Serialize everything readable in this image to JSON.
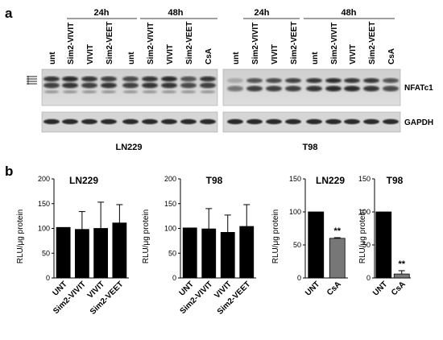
{
  "panel_a": {
    "label": "a",
    "groups": [
      {
        "time": "24h",
        "lanes": [
          "unt",
          "Sim2-VIVIT",
          "VIVIT",
          "Sim2-VEET"
        ]
      },
      {
        "time": "48h",
        "lanes": [
          "unt",
          "Sim2-VIVIT",
          "VIVIT",
          "Sim2-VEET",
          "CsA"
        ]
      }
    ],
    "blots": [
      {
        "cell_line": "LN229"
      },
      {
        "cell_line": "T98"
      }
    ],
    "protein_nfat": "NFATc1",
    "protein_gapdh": "GAPDH"
  },
  "panel_b": {
    "label": "b",
    "significance": "**"
  },
  "chart_data": [
    {
      "type": "bar",
      "title": "LN229",
      "ylabel": "RLU/μg protein",
      "categories": [
        "UNT",
        "Sim2-VIVIT",
        "VIVIT",
        "Sim2-VEET"
      ],
      "values": [
        102,
        98,
        100,
        111
      ],
      "errors": [
        0,
        36,
        53,
        37
      ],
      "ylim": [
        0,
        200
      ],
      "yticks": [
        0,
        50,
        100,
        150,
        200
      ],
      "bar_color": "#000000"
    },
    {
      "type": "bar",
      "title": "T98",
      "ylabel": "RLU/μg protein",
      "categories": [
        "UNT",
        "Sim2-VIVIT",
        "VIVIT",
        "Sim2-VEET"
      ],
      "values": [
        101,
        99,
        92,
        104
      ],
      "errors": [
        0,
        41,
        35,
        44
      ],
      "ylim": [
        0,
        200
      ],
      "yticks": [
        0,
        50,
        100,
        150,
        200
      ],
      "bar_color": "#000000"
    },
    {
      "type": "bar",
      "title": "LN229",
      "ylabel": "RLU/μg protein",
      "categories": [
        "UNT",
        "CsA"
      ],
      "values": [
        100,
        60
      ],
      "errors": [
        0,
        1
      ],
      "ylim": [
        0,
        150
      ],
      "yticks": [
        0,
        50,
        100,
        150
      ],
      "bar_colors": [
        "#000000",
        "#777777"
      ],
      "annotation": "**"
    },
    {
      "type": "bar",
      "title": "T98",
      "ylabel": "RLU/μg protein",
      "categories": [
        "UNT",
        "CsA"
      ],
      "values": [
        100,
        6
      ],
      "errors": [
        0,
        5
      ],
      "ylim": [
        0,
        150
      ],
      "yticks": [
        0,
        50,
        100,
        150
      ],
      "bar_colors": [
        "#000000",
        "#777777"
      ],
      "annotation": "**"
    }
  ]
}
